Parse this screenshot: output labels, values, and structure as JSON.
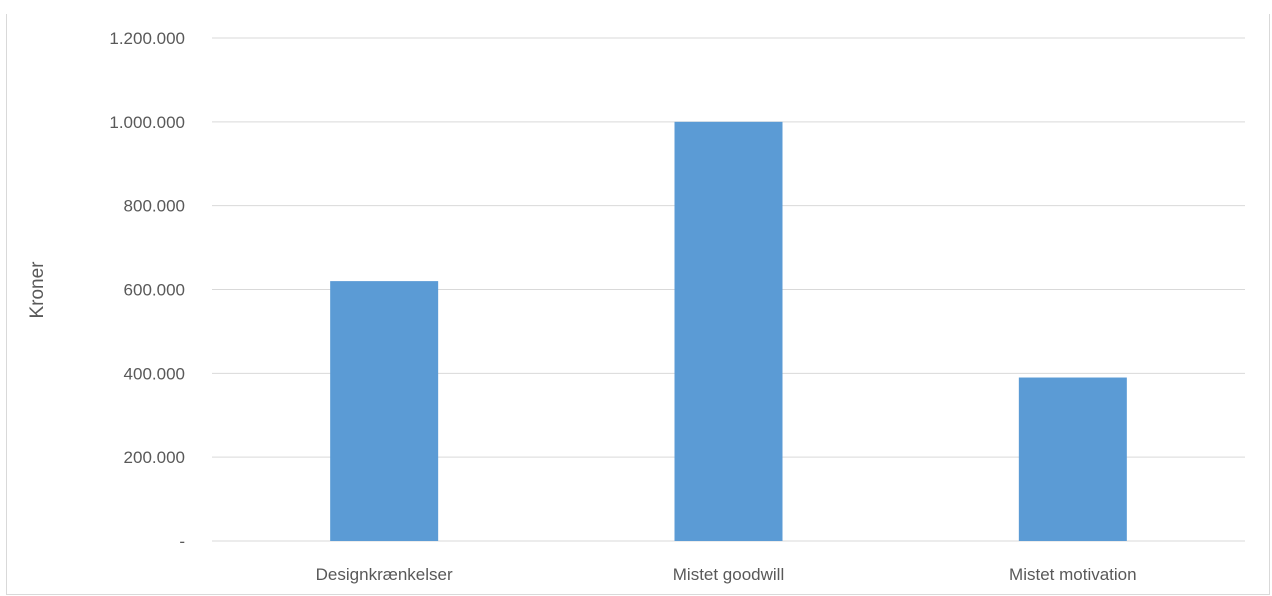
{
  "title": "",
  "chart_data": {
    "type": "bar",
    "title": "",
    "ylabel": "Kroner",
    "xlabel": "",
    "categories": [
      "Designkrænkelser",
      "Mistet goodwill",
      "Mistet motivation"
    ],
    "values": [
      620000,
      1000000,
      390000
    ],
    "ylim": [
      0,
      1200000
    ],
    "yticks": [
      0,
      200000,
      400000,
      600000,
      800000,
      1000000,
      1200000
    ],
    "ytick_labels": [
      "-",
      "200.000",
      "400.000",
      "600.000",
      "800.000",
      "1.000.000",
      "1.200.000"
    ],
    "bar_color": "#5b9bd5",
    "grid_color": "#d9d9d9",
    "grid": true,
    "legend": false
  }
}
